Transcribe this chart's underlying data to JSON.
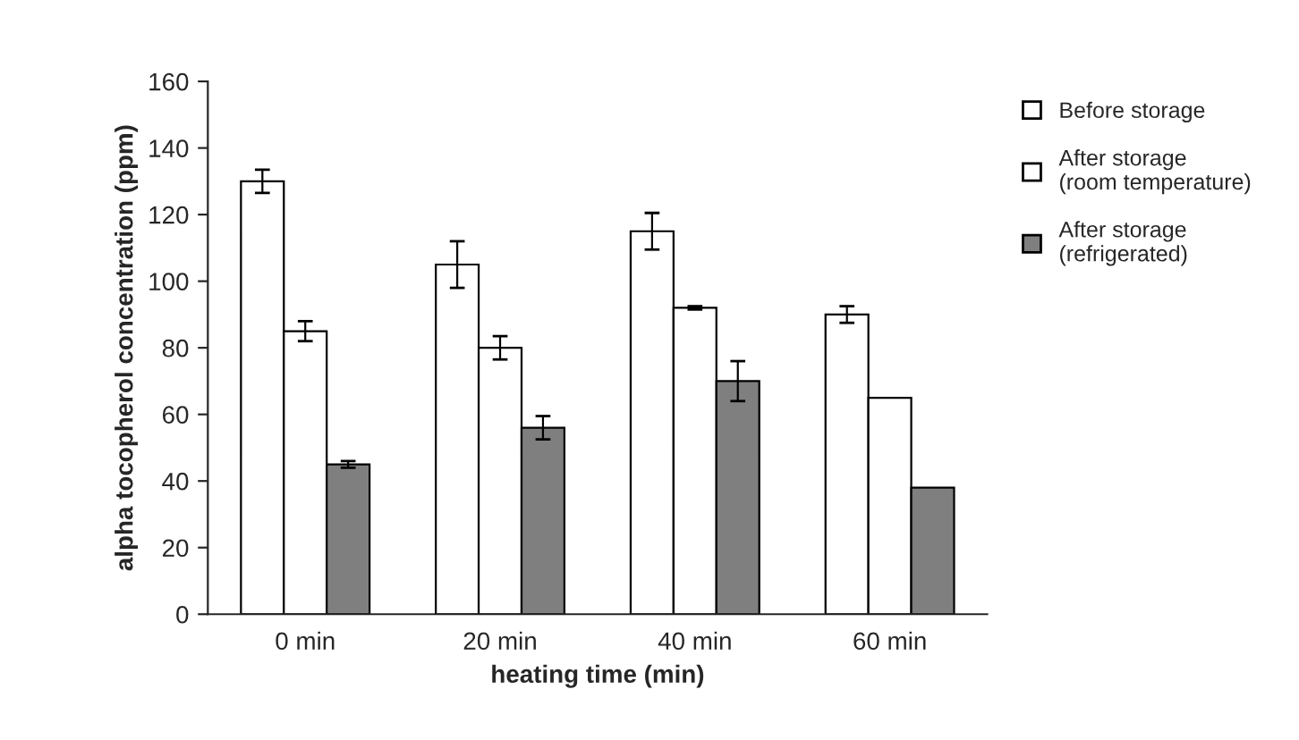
{
  "chart_data": {
    "type": "bar",
    "xlabel": "heating time (min)",
    "ylabel": "alpha tocopherol concentration (ppm)",
    "categories": [
      "0 min",
      "20 min",
      "40 min",
      "60 min"
    ],
    "series": [
      {
        "name": "Before storage",
        "color": "#ffffff",
        "values": [
          130,
          105,
          115,
          90
        ],
        "errors": [
          3.5,
          7,
          5.5,
          2.5
        ]
      },
      {
        "name": "After storage (room temperature)",
        "color": "#ffffff",
        "values": [
          85,
          80,
          92,
          65
        ],
        "errors": [
          3,
          3.5,
          0.5,
          null
        ]
      },
      {
        "name": "After storage (refrigerated)",
        "color": "#7f7f7f",
        "values": [
          45,
          56,
          70,
          38
        ],
        "errors": [
          1,
          3.5,
          6,
          null
        ]
      }
    ],
    "ylim": [
      0,
      160
    ],
    "yticks": [
      0,
      20,
      40,
      60,
      80,
      100,
      120,
      140,
      160
    ],
    "grid": false,
    "legend": "right"
  }
}
